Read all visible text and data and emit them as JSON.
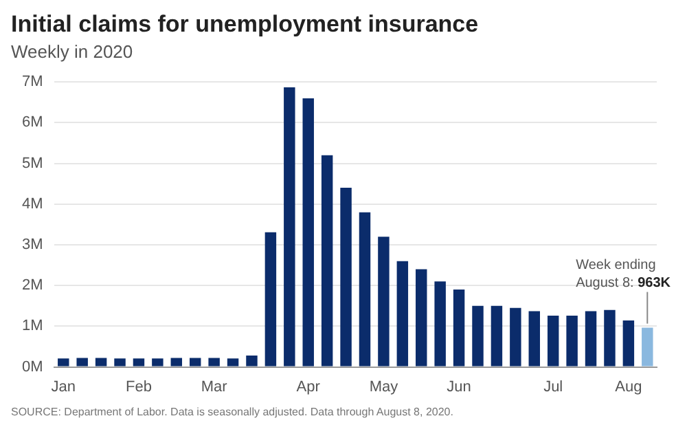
{
  "chart_data": {
    "type": "bar",
    "title": "Initial claims for unemployment insurance",
    "subtitle": "Weekly in 2020",
    "categories": [
      "Jan",
      null,
      null,
      null,
      "Feb",
      null,
      null,
      null,
      "Mar",
      null,
      null,
      null,
      null,
      "Apr",
      null,
      null,
      null,
      "May",
      null,
      null,
      null,
      "Jun",
      null,
      null,
      null,
      null,
      "Jul",
      null,
      null,
      null,
      "Aug",
      null
    ],
    "values": [
      0.21,
      0.22,
      0.22,
      0.21,
      0.21,
      0.21,
      0.22,
      0.22,
      0.22,
      0.21,
      0.28,
      3.31,
      6.87,
      6.6,
      5.2,
      4.4,
      3.8,
      3.2,
      2.6,
      2.4,
      2.1,
      1.9,
      1.5,
      1.5,
      1.45,
      1.37,
      1.26,
      1.26,
      1.37,
      1.4,
      1.14,
      0.963
    ],
    "colors": [
      "#0b2c6b",
      "#0b2c6b",
      "#0b2c6b",
      "#0b2c6b",
      "#0b2c6b",
      "#0b2c6b",
      "#0b2c6b",
      "#0b2c6b",
      "#0b2c6b",
      "#0b2c6b",
      "#0b2c6b",
      "#0b2c6b",
      "#0b2c6b",
      "#0b2c6b",
      "#0b2c6b",
      "#0b2c6b",
      "#0b2c6b",
      "#0b2c6b",
      "#0b2c6b",
      "#0b2c6b",
      "#0b2c6b",
      "#0b2c6b",
      "#0b2c6b",
      "#0b2c6b",
      "#0b2c6b",
      "#0b2c6b",
      "#0b2c6b",
      "#0b2c6b",
      "#0b2c6b",
      "#0b2c6b",
      "#0b2c6b",
      "#8ab8df"
    ],
    "value_labels": [
      null,
      null,
      null,
      null,
      null,
      null,
      null,
      null,
      null,
      null,
      null,
      null,
      null,
      null,
      null,
      null,
      null,
      null,
      null,
      null,
      null,
      null,
      null,
      null,
      null,
      null,
      null,
      null,
      null,
      null,
      null,
      "Week ending August 8: 963K"
    ],
    "ylim": [
      0,
      7
    ],
    "yticks": [
      {
        "value": 0,
        "label": "0M"
      },
      {
        "value": 1,
        "label": "1M"
      },
      {
        "value": 2,
        "label": "2M"
      },
      {
        "value": 3,
        "label": "3M"
      },
      {
        "value": 4,
        "label": "4M"
      },
      {
        "value": 5,
        "label": "5M"
      },
      {
        "value": 6,
        "label": "6M"
      },
      {
        "value": 7,
        "label": "7M"
      }
    ],
    "grid": "y",
    "legend": false,
    "annotations": [
      "SOURCE: Department of Labor. Data is seasonally adjusted. Data through August 8, 2020."
    ]
  }
}
